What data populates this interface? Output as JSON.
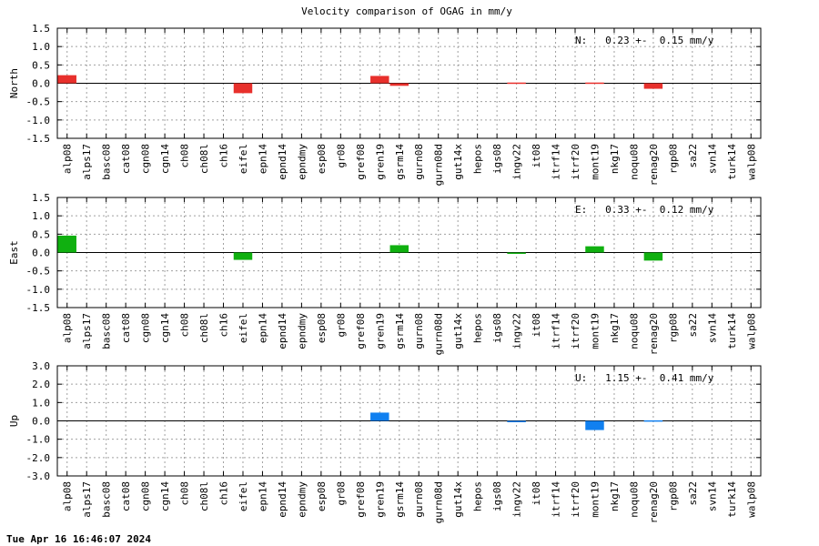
{
  "title": "Velocity comparison of OGAG in mm/y",
  "timestamp": "Tue Apr 16 16:46:07 2024",
  "chart_data": {
    "type": "bar",
    "title": "Velocity comparison of OGAG in mm/y",
    "grid": true,
    "categories": [
      "alp08",
      "alps17",
      "basc08",
      "cat08",
      "cgn08",
      "cgn14",
      "ch08",
      "ch08l",
      "ch16",
      "eifel",
      "epn14",
      "epnd14",
      "epndmy",
      "esp08",
      "gr08",
      "gref08",
      "gren19",
      "gsrm14",
      "gurn08",
      "gurn08d",
      "gut14x",
      "hepos",
      "igs08",
      "ingv22",
      "it08",
      "itrf14",
      "itrf20",
      "mont19",
      "nkg17",
      "noqu08",
      "renag20",
      "rgp08",
      "sa22",
      "svn14",
      "turk14",
      "walp08"
    ],
    "panels": [
      {
        "name": "North",
        "ylabel": "North",
        "color": "#e8302c",
        "ylim": [
          -1.5,
          1.5
        ],
        "yticks": [
          "1.5",
          "1.0",
          "0.5",
          "0.0",
          "-0.5",
          "-1.0",
          "-1.5"
        ],
        "summary": "N:   0.23 +-  0.15 mm/y",
        "values": [
          0.22,
          0,
          0,
          0,
          0,
          0,
          0,
          0,
          0,
          -0.27,
          0,
          0,
          0,
          0,
          0,
          0,
          0.2,
          -0.07,
          0,
          0,
          0,
          0,
          0,
          0.02,
          0,
          0,
          0,
          0.02,
          0,
          0,
          -0.15,
          0,
          0,
          0,
          0,
          0
        ]
      },
      {
        "name": "East",
        "ylabel": "East",
        "color": "#10b010",
        "ylim": [
          -1.5,
          1.5
        ],
        "yticks": [
          "1.5",
          "1.0",
          "0.5",
          "0.0",
          "-0.5",
          "-1.0",
          "-1.5"
        ],
        "summary": "E:   0.33 +-  0.12 mm/y",
        "values": [
          0.46,
          0,
          0,
          0,
          0,
          0,
          0,
          0,
          0,
          -0.2,
          0,
          0,
          0,
          0,
          0,
          0,
          0,
          0.2,
          0,
          0,
          0,
          0,
          0,
          -0.02,
          0,
          0,
          0,
          0.17,
          0,
          0,
          -0.22,
          0,
          0,
          0,
          0,
          0
        ]
      },
      {
        "name": "Up",
        "ylabel": "Up",
        "color": "#1080f0",
        "ylim": [
          -3.0,
          3.0
        ],
        "yticks": [
          "3.0",
          "2.0",
          "1.0",
          "0.0",
          "-1.0",
          "-2.0",
          "-3.0"
        ],
        "summary": "U:   1.15 +-  0.41 mm/y",
        "values": [
          0,
          0,
          0,
          0,
          0,
          0,
          0,
          0,
          0,
          0,
          0,
          0,
          0,
          0,
          0,
          0,
          0.45,
          0,
          0,
          0,
          0,
          0,
          0,
          -0.05,
          0,
          0,
          0,
          -0.5,
          0,
          0,
          0.03,
          0,
          0,
          0,
          0,
          0
        ]
      }
    ]
  }
}
